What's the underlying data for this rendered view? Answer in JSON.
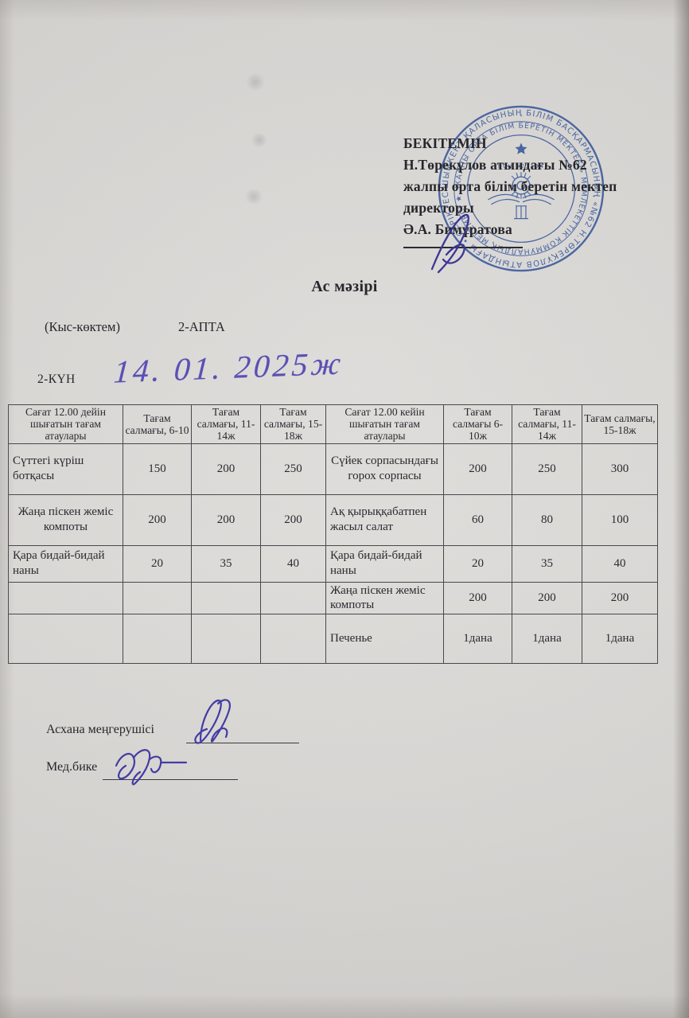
{
  "approval": {
    "lines": [
      "БЕКІТЕМІН",
      "Н.Төрекұлов атындағы №62",
      "жалпы орта білім беретін мектеп",
      "директоры",
      "Ә.А. Бимұратова"
    ]
  },
  "stamp": {
    "color": "#4066ba",
    "outer_ring_text": "ШЫМКЕНТ ҚАЛАСЫНЫҢ БІЛІМ БАСҚАРМАСЫНЫҢ «№62 Н.ТӨРЕҚҰЛОВ АТЫНДАҒЫ • СЕРІКТЕСТІГІ «SERVICE»",
    "inner_ring_text": "ЖАЛПЫ ОРТА БІЛІМ БЕРЕТІН МЕКТЕБІ» МЕМЛЕКЕТТІК КОММУНАЛДЫҚ МЕКЕМЕСІ ★ ОРТА",
    "center_text": "БСН 021194"
  },
  "title": "Ас мәзірі",
  "season_label": "(Кыс-көктем)",
  "week_label": "2-АПТА",
  "day_label": "2-КҮН",
  "handwritten_date": "14. 01. 2025ж",
  "ink_color": "#4a42a6",
  "menu_table": {
    "headers": [
      "Сағат  12.00 дейін шығатын тағам атаулары",
      "Тағам салмағы, 6-10",
      "Тағам салмағы, 11-14ж",
      "Тағам салмағы, 15-18ж",
      "Сағат  12.00 кейін шығатын тағам атаулары",
      "Тағам салмағы 6-10ж",
      "Тағам салмағы, 11-14ж",
      "Тағам салмағы, 15-18ж"
    ],
    "rows": [
      [
        "Сүттегі күріш ботқасы",
        "150",
        "200",
        "250",
        "Сүйек сорпасындағы горох сорпасы",
        "200",
        "250",
        "300"
      ],
      [
        "Жаңа піскен жеміс компоты",
        "200",
        "200",
        "200",
        "Ақ қырыққабатпен жасыл салат",
        "60",
        "80",
        "100"
      ],
      [
        "Қара бидай-бидай наны",
        "20",
        "35",
        "40",
        "Қара бидай-бидай наны",
        "20",
        "35",
        "40"
      ],
      [
        "",
        "",
        "",
        "",
        "Жаңа піскен жеміс компоты",
        "200",
        "200",
        "200"
      ],
      [
        "",
        "",
        "",
        "",
        "Печенье",
        "1дана",
        "1дана",
        "1дана"
      ]
    ]
  },
  "footer": {
    "canteen_manager_label": "Асхана меңгерушісі",
    "nurse_label": "Мед.бике"
  }
}
